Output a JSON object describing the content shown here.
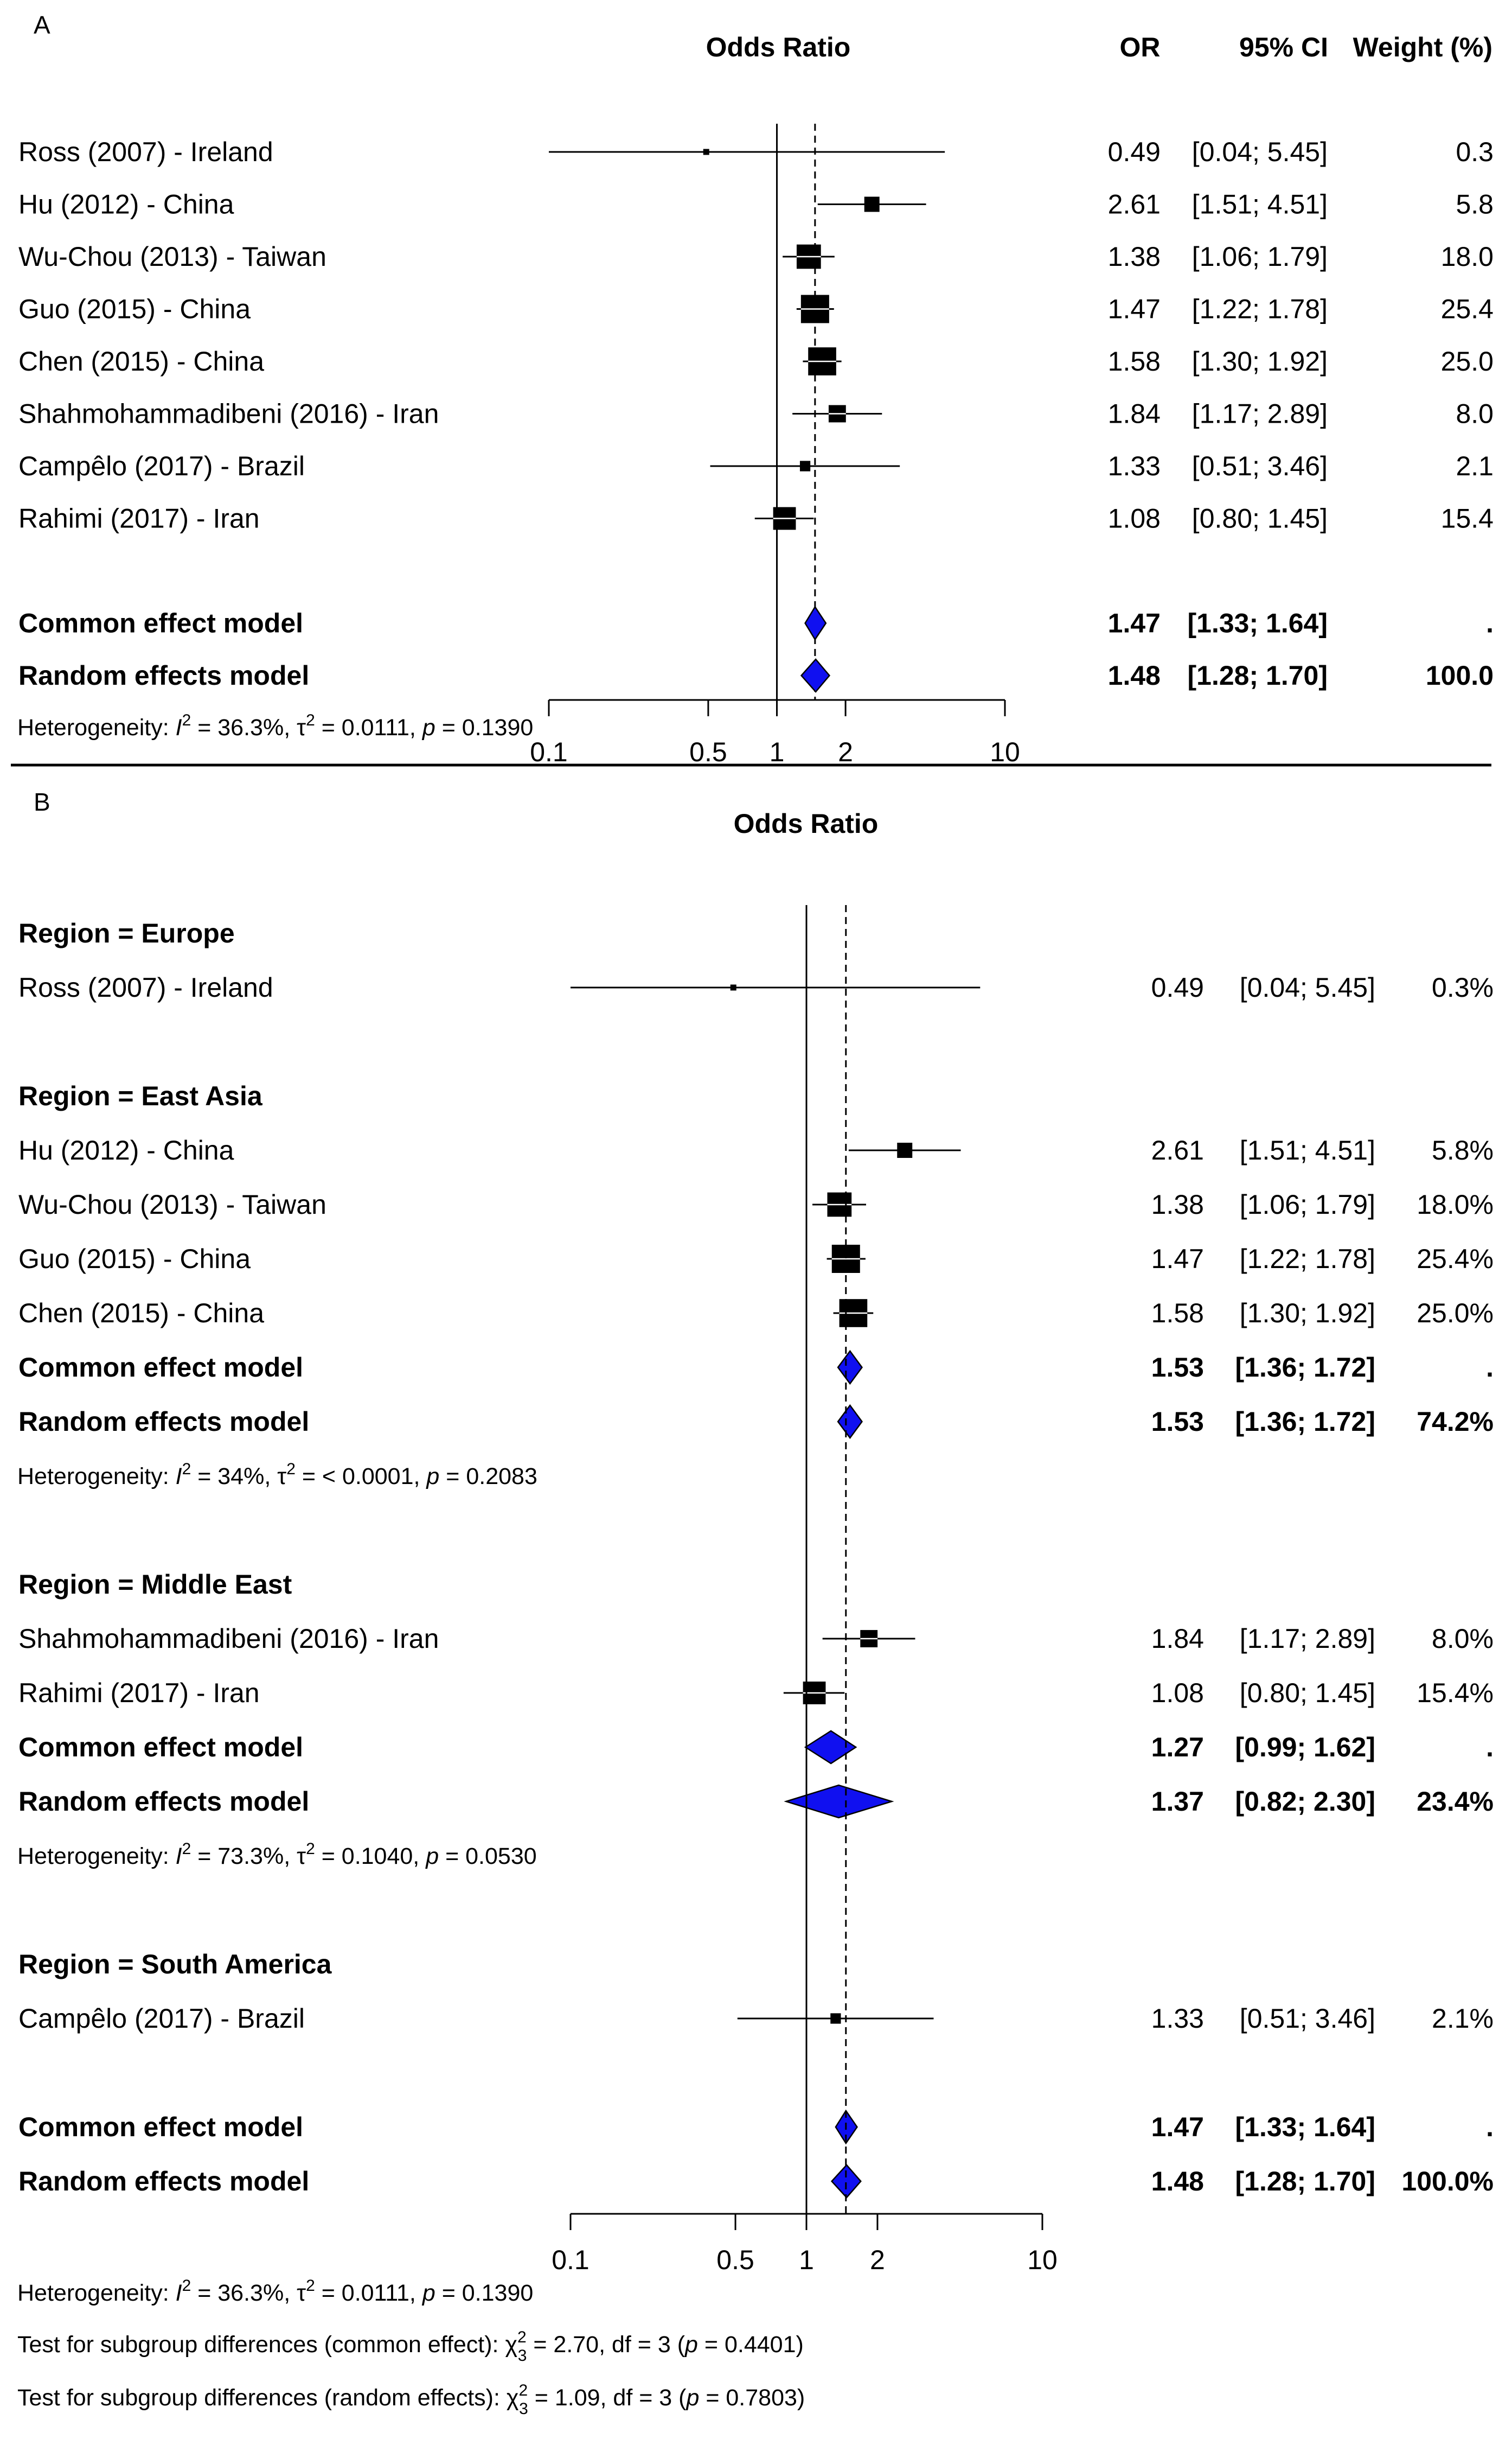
{
  "chart_data": [
    {
      "type": "forest",
      "panel_label": "A",
      "headers": {
        "plot": "Odds Ratio",
        "or": "OR",
        "ci": "95% CI",
        "weight": "Weight (%)"
      },
      "scale": "log",
      "null_value": 1,
      "pooled_or": 1.47,
      "xlim": [
        0.1,
        10
      ],
      "ticks": [
        {
          "value": 0.1,
          "label": "0.1"
        },
        {
          "value": 0.5,
          "label": "0.5"
        },
        {
          "value": 1,
          "label": "1"
        },
        {
          "value": 2,
          "label": "2"
        },
        {
          "value": 10,
          "label": "10"
        }
      ],
      "studies": [
        {
          "label": "Ross (2007) - Ireland",
          "or": 0.49,
          "lower": 0.04,
          "upper": 5.45,
          "or_text": "0.49",
          "ci_text": "[0.04; 5.45]",
          "weight_text": "0.3",
          "weight": 0.3
        },
        {
          "label": "Hu (2012) - China",
          "or": 2.61,
          "lower": 1.51,
          "upper": 4.51,
          "or_text": "2.61",
          "ci_text": "[1.51; 4.51]",
          "weight_text": "5.8",
          "weight": 5.8
        },
        {
          "label": "Wu-Chou (2013) - Taiwan",
          "or": 1.38,
          "lower": 1.06,
          "upper": 1.79,
          "or_text": "1.38",
          "ci_text": "[1.06; 1.79]",
          "weight_text": "18.0",
          "weight": 18.0
        },
        {
          "label": "Guo (2015) - China",
          "or": 1.47,
          "lower": 1.22,
          "upper": 1.78,
          "or_text": "1.47",
          "ci_text": "[1.22; 1.78]",
          "weight_text": "25.4",
          "weight": 25.4
        },
        {
          "label": "Chen (2015) - China",
          "or": 1.58,
          "lower": 1.3,
          "upper": 1.92,
          "or_text": "1.58",
          "ci_text": "[1.30; 1.92]",
          "weight_text": "25.0",
          "weight": 25.0
        },
        {
          "label": "Shahmohammadibeni (2016) - Iran",
          "or": 1.84,
          "lower": 1.17,
          "upper": 2.89,
          "or_text": "1.84",
          "ci_text": "[1.17; 2.89]",
          "weight_text": "8.0",
          "weight": 8.0
        },
        {
          "label": "Campêlo (2017) - Brazil",
          "or": 1.33,
          "lower": 0.51,
          "upper": 3.46,
          "or_text": "1.33",
          "ci_text": "[0.51; 3.46]",
          "weight_text": "2.1",
          "weight": 2.1
        },
        {
          "label": "Rahimi (2017) - Iran",
          "or": 1.08,
          "lower": 0.8,
          "upper": 1.45,
          "or_text": "1.08",
          "ci_text": "[0.80; 1.45]",
          "weight_text": "15.4",
          "weight": 15.4
        }
      ],
      "models": [
        {
          "label": "Common effect model",
          "or": 1.47,
          "lower": 1.33,
          "upper": 1.64,
          "or_text": "1.47",
          "ci_text": "[1.33; 1.64]",
          "weight_text": "."
        },
        {
          "label": "Random effects model",
          "or": 1.48,
          "lower": 1.28,
          "upper": 1.7,
          "or_text": "1.48",
          "ci_text": "[1.28; 1.70]",
          "weight_text": "100.0"
        }
      ],
      "heterogeneity": {
        "prefix": "Heterogeneity: ",
        "i2": "36.3%",
        "tau2": "0.0111",
        "p": "0.1390"
      }
    },
    {
      "type": "forest",
      "panel_label": "B",
      "headers": {
        "plot": "Odds Ratio"
      },
      "scale": "log",
      "null_value": 1,
      "pooled_or": 1.47,
      "xlim": [
        0.1,
        10
      ],
      "ticks": [
        {
          "value": 0.1,
          "label": "0.1"
        },
        {
          "value": 0.5,
          "label": "0.5"
        },
        {
          "value": 1,
          "label": "1"
        },
        {
          "value": 2,
          "label": "2"
        },
        {
          "value": 10,
          "label": "10"
        }
      ],
      "groups": [
        {
          "title": "Region = Europe",
          "studies": [
            {
              "label": "Ross (2007) - Ireland",
              "or": 0.49,
              "lower": 0.04,
              "upper": 5.45,
              "or_text": "0.49",
              "ci_text": "[0.04; 5.45]",
              "weight_text": "0.3%",
              "weight": 0.3
            }
          ],
          "models": [],
          "heterogeneity": null
        },
        {
          "title": "Region = East Asia",
          "studies": [
            {
              "label": "Hu (2012) - China",
              "or": 2.61,
              "lower": 1.51,
              "upper": 4.51,
              "or_text": "2.61",
              "ci_text": "[1.51; 4.51]",
              "weight_text": "5.8%",
              "weight": 5.8
            },
            {
              "label": "Wu-Chou (2013) - Taiwan",
              "or": 1.38,
              "lower": 1.06,
              "upper": 1.79,
              "or_text": "1.38",
              "ci_text": "[1.06; 1.79]",
              "weight_text": "18.0%",
              "weight": 18.0
            },
            {
              "label": "Guo (2015) - China",
              "or": 1.47,
              "lower": 1.22,
              "upper": 1.78,
              "or_text": "1.47",
              "ci_text": "[1.22; 1.78]",
              "weight_text": "25.4%",
              "weight": 25.4
            },
            {
              "label": "Chen (2015) - China",
              "or": 1.58,
              "lower": 1.3,
              "upper": 1.92,
              "or_text": "1.58",
              "ci_text": "[1.30; 1.92]",
              "weight_text": "25.0%",
              "weight": 25.0
            }
          ],
          "models": [
            {
              "label": "Common effect model",
              "or": 1.53,
              "lower": 1.36,
              "upper": 1.72,
              "or_text": "1.53",
              "ci_text": "[1.36; 1.72]",
              "weight_text": "."
            },
            {
              "label": "Random effects model",
              "or": 1.53,
              "lower": 1.36,
              "upper": 1.72,
              "or_text": "1.53",
              "ci_text": "[1.36; 1.72]",
              "weight_text": "74.2%"
            }
          ],
          "heterogeneity": {
            "prefix": "Heterogeneity: ",
            "i2": "34%",
            "tau2": "< 0.0001",
            "p": "0.2083"
          }
        },
        {
          "title": "Region = Middle East",
          "studies": [
            {
              "label": "Shahmohammadibeni (2016) - Iran",
              "or": 1.84,
              "lower": 1.17,
              "upper": 2.89,
              "or_text": "1.84",
              "ci_text": "[1.17; 2.89]",
              "weight_text": "8.0%",
              "weight": 8.0
            },
            {
              "label": "Rahimi (2017) - Iran",
              "or": 1.08,
              "lower": 0.8,
              "upper": 1.45,
              "or_text": "1.08",
              "ci_text": "[0.80; 1.45]",
              "weight_text": "15.4%",
              "weight": 15.4
            }
          ],
          "models": [
            {
              "label": "Common effect model",
              "or": 1.27,
              "lower": 0.99,
              "upper": 1.62,
              "or_text": "1.27",
              "ci_text": "[0.99; 1.62]",
              "weight_text": "."
            },
            {
              "label": "Random effects model",
              "or": 1.37,
              "lower": 0.82,
              "upper": 2.3,
              "or_text": "1.37",
              "ci_text": "[0.82; 2.30]",
              "weight_text": "23.4%"
            }
          ],
          "heterogeneity": {
            "prefix": "Heterogeneity: ",
            "i2": "73.3%",
            "tau2": "0.1040",
            "p": "0.0530"
          }
        },
        {
          "title": "Region = South America",
          "studies": [
            {
              "label": "Campêlo (2017) - Brazil",
              "or": 1.33,
              "lower": 0.51,
              "upper": 3.46,
              "or_text": "1.33",
              "ci_text": "[0.51; 3.46]",
              "weight_text": "2.1%",
              "weight": 2.1
            }
          ],
          "models": [],
          "heterogeneity": null
        }
      ],
      "overall_models": [
        {
          "label": "Common effect model",
          "or": 1.47,
          "lower": 1.33,
          "upper": 1.64,
          "or_text": "1.47",
          "ci_text": "[1.33; 1.64]",
          "weight_text": "."
        },
        {
          "label": "Random effects model",
          "or": 1.48,
          "lower": 1.28,
          "upper": 1.7,
          "or_text": "1.48",
          "ci_text": "[1.28; 1.70]",
          "weight_text": "100.0%"
        }
      ],
      "heterogeneity": {
        "prefix": "Heterogeneity: ",
        "i2": "36.3%",
        "tau2": "0.0111",
        "p": "0.1390"
      },
      "subgroup_tests": [
        {
          "prefix": "Test for subgroup differences (common effect): ",
          "chi2": "2.70",
          "df_sub": "3",
          "df": "3",
          "p": "0.4401"
        },
        {
          "prefix": "Test for subgroup differences (random effects): ",
          "chi2": "1.09",
          "df_sub": "3",
          "df": "3",
          "p": "0.7803"
        }
      ]
    }
  ],
  "colors": {
    "diamond": "#1010f0",
    "ink": "#000000",
    "background": "#ffffff"
  }
}
